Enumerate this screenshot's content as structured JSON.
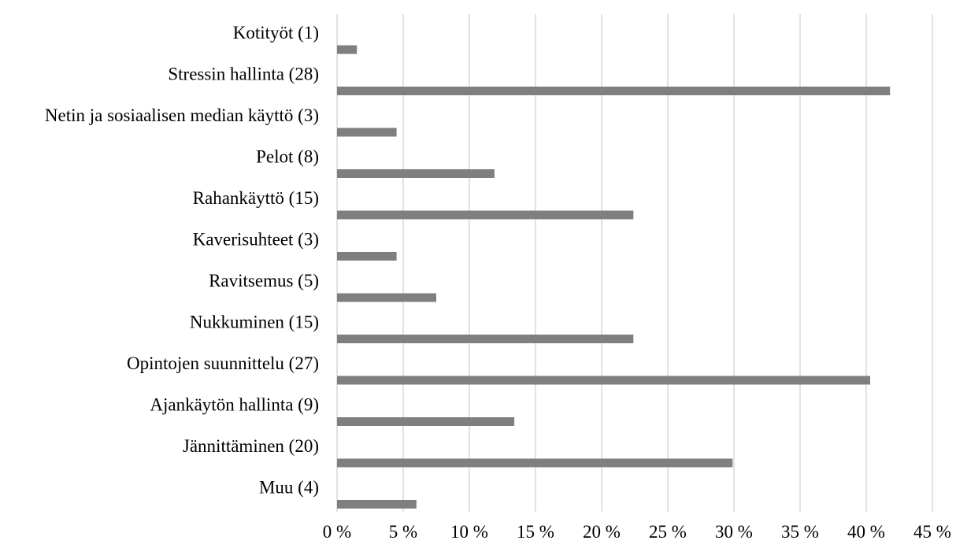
{
  "chart_data": {
    "type": "bar",
    "orientation": "horizontal",
    "categories": [
      "Kotityöt (1)",
      "Stressin hallinta (28)",
      "Netin ja sosiaalisen median käyttö (3)",
      "Pelot (8)",
      "Rahankäyttö (15)",
      "Kaverisuhteet (3)",
      "Ravitsemus (5)",
      "Nukkuminen (15)",
      "Opintojen suunnittelu (27)",
      "Ajankäytön hallinta (9)",
      "Jännittäminen (20)",
      "Muu (4)"
    ],
    "values": [
      1.5,
      41.8,
      4.5,
      11.9,
      22.4,
      4.5,
      7.5,
      22.4,
      40.3,
      13.4,
      29.9,
      6.0
    ],
    "x_ticks": [
      0,
      5,
      10,
      15,
      20,
      25,
      30,
      35,
      40,
      45
    ],
    "x_tick_labels": [
      "0 %",
      "5 %",
      "10 %",
      "15 %",
      "20 %",
      "25 %",
      "30 %",
      "35 %",
      "40 %",
      "45 %"
    ],
    "xlim": [
      0,
      45
    ],
    "grid": "vertical",
    "legend": "none",
    "title": "",
    "xlabel": "",
    "ylabel": "",
    "colors": {
      "bar": "#7f7f7f",
      "grid": "#d9d9d9",
      "text": "#000000"
    }
  }
}
